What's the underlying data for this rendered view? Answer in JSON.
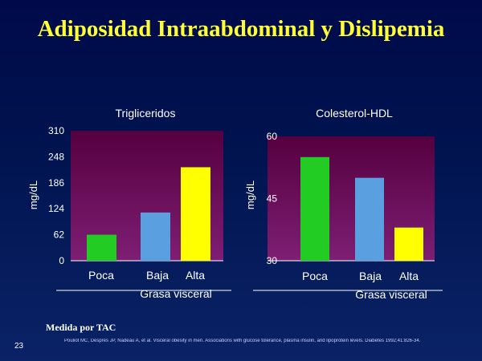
{
  "slide": {
    "title": "Adiposidad Intraabdominal y Dislipemia",
    "measure_note": "Medida por TAC",
    "slide_number": "23",
    "citation": "Pouliot MC, Despres JP, Nadeau A, et al. Visceral obesity in men. Associations with glucose tolerance, plasma insulin, and lipoprotein levels. Diabetes 1992;41:826-34."
  },
  "colors": {
    "green": "#22cc22",
    "blue": "#5aa0e0",
    "yellow": "#ffff00",
    "plot_top": "#5a0a4a",
    "plot_bottom": "#7a1b6e"
  },
  "chart_data": [
    {
      "type": "bar",
      "title": "Trigliceridos",
      "ylabel": "mg/dL",
      "xlabel": "Grasa visceral",
      "categories": [
        "Poca",
        "Baja",
        "Alta"
      ],
      "values": [
        62,
        115,
        223
      ],
      "ylim": [
        0,
        310
      ],
      "yticks": [
        0,
        62,
        124,
        186,
        248,
        310
      ],
      "bar_colors": [
        "#22cc22",
        "#5aa0e0",
        "#ffff00"
      ]
    },
    {
      "type": "bar",
      "title": "Colesterol-HDL",
      "ylabel": "mg/dL",
      "xlabel": "Grasa visceral",
      "categories": [
        "Poca",
        "Baja",
        "Alta"
      ],
      "values": [
        55,
        50,
        38
      ],
      "ylim": [
        30,
        60
      ],
      "yticks": [
        30,
        45,
        60
      ],
      "bar_colors": [
        "#22cc22",
        "#5aa0e0",
        "#ffff00"
      ]
    }
  ]
}
